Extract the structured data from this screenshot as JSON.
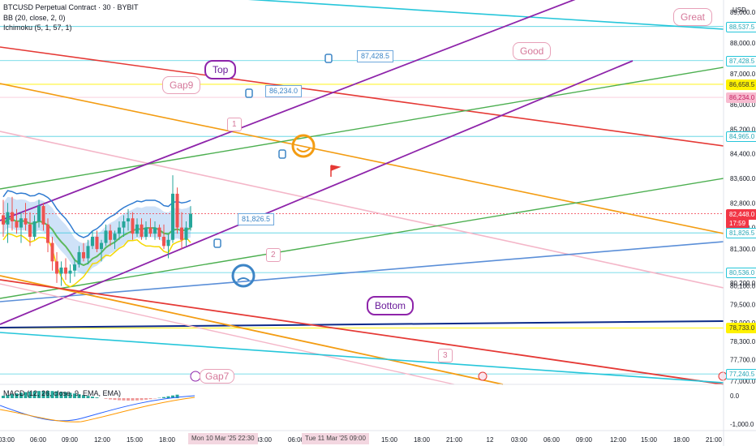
{
  "legend": {
    "symbol": "BTCUSD Perpetual Contract · 30 · BYBIT",
    "bb": "BB (20, close, 2, 0)",
    "ichimoku": "Ichimoku (5, 1, 57, 1)",
    "macd": "MACD (12, 26, close, 9, EMA, EMA)"
  },
  "price_axis": {
    "unit": "USD",
    "labels": [
      "89,000.0",
      "88,000.0",
      "87,000.0",
      "86,000.0",
      "85,200.0",
      "84,400.0",
      "83,600.0",
      "82,800.0",
      "82,000.0",
      "81,300.0",
      "80,200.0",
      "80,100.0",
      "79,500.0",
      "78,900.0",
      "78,300.0",
      "77,700.0",
      "77,000.0"
    ],
    "tags": [
      {
        "text": "88,537.5",
        "bg": "#ffffff",
        "fg": "#26a6b5",
        "border": "#26c6da"
      },
      {
        "text": "87,428.5",
        "bg": "#ffffff",
        "fg": "#26a6b5",
        "border": "#26c6da"
      },
      {
        "text": "86,658.5",
        "bg": "#fff200",
        "fg": "#333333",
        "border": "#fff200"
      },
      {
        "text": "86,234.0",
        "bg": "#f8bbd0",
        "fg": "#c2185b",
        "border": "#f8bbd0"
      },
      {
        "text": "84,965.0",
        "bg": "#ffffff",
        "fg": "#26a6b5",
        "border": "#26c6da"
      },
      {
        "text": "82,448.0",
        "bg": "#f23645",
        "fg": "#ffffff",
        "border": "#f23645"
      },
      {
        "text": "17:59",
        "bg": "#f23645",
        "fg": "#ffffff",
        "border": "#f23645"
      },
      {
        "text": "81,826.5",
        "bg": "#ffffff",
        "fg": "#26a6b5",
        "border": "#26c6da"
      },
      {
        "text": "80,536.0",
        "bg": "#ffffff",
        "fg": "#26a6b5",
        "border": "#26c6da"
      },
      {
        "text": "78,733.0",
        "bg": "#fff200",
        "fg": "#333333",
        "border": "#fff200"
      },
      {
        "text": "77,240.5",
        "bg": "#ffffff",
        "fg": "#26a6b5",
        "border": "#26c6da"
      }
    ],
    "macd_labels": [
      "0.0",
      "-1,000.0"
    ]
  },
  "time_axis": {
    "labels": [
      "03:00",
      "06:00",
      "09:00",
      "12:00",
      "15:00",
      "18:00",
      "03:00",
      "06:00",
      "12:00",
      "15:00",
      "18:00",
      "21:00",
      "12",
      "03:00",
      "06:00",
      "09:00",
      "12:00",
      "15:00",
      "18:00",
      "21:00"
    ],
    "highlights": [
      "Mon 10 Mar '25  22:30",
      "Tue 11 Mar '25  09:00"
    ]
  },
  "annotations": {
    "callouts": [
      "87,428.5",
      "86,234.0",
      "81,826.5"
    ],
    "bubbles": [
      "Great",
      "Good",
      "Gap9",
      "Top",
      "Bottom",
      "Gap7"
    ],
    "waves": [
      "1",
      "2",
      "3"
    ]
  },
  "colors": {
    "up": "#26a69a",
    "down": "#ef5350",
    "orange": "#f39c12",
    "purple": "#8e24aa",
    "green": "#4caf50",
    "red": "#e53935",
    "cyan": "#26c6da",
    "blue": "#5b8fd8",
    "navy": "#0d2b8a",
    "yellow": "#fff200",
    "pink": "#f4b6c8"
  },
  "chart_data": {
    "type": "candlestick",
    "title": "BTCUSD Perpetual Contract · 30 · BYBIT",
    "y_range": [
      76900,
      89400
    ],
    "candles": [
      {
        "o": 82400,
        "h": 82900,
        "l": 81700,
        "c": 82100
      },
      {
        "o": 82100,
        "h": 82800,
        "l": 81500,
        "c": 82500
      },
      {
        "o": 82500,
        "h": 83000,
        "l": 81900,
        "c": 82200
      },
      {
        "o": 82200,
        "h": 82600,
        "l": 81800,
        "c": 82000
      },
      {
        "o": 82000,
        "h": 82500,
        "l": 81500,
        "c": 82300
      },
      {
        "o": 82300,
        "h": 82800,
        "l": 81900,
        "c": 82100
      },
      {
        "o": 82100,
        "h": 82500,
        "l": 81400,
        "c": 81700
      },
      {
        "o": 81700,
        "h": 82400,
        "l": 81600,
        "c": 82200
      },
      {
        "o": 82200,
        "h": 82900,
        "l": 82000,
        "c": 82700
      },
      {
        "o": 82700,
        "h": 82800,
        "l": 81900,
        "c": 82100
      },
      {
        "o": 82100,
        "h": 82300,
        "l": 81200,
        "c": 81500
      },
      {
        "o": 81500,
        "h": 81700,
        "l": 80600,
        "c": 80900
      },
      {
        "o": 80900,
        "h": 81200,
        "l": 80200,
        "c": 80500
      },
      {
        "o": 80500,
        "h": 80900,
        "l": 80100,
        "c": 80700
      },
      {
        "o": 80700,
        "h": 81000,
        "l": 80300,
        "c": 80500
      },
      {
        "o": 80500,
        "h": 80800,
        "l": 80200,
        "c": 80600
      },
      {
        "o": 80600,
        "h": 81000,
        "l": 80400,
        "c": 80800
      },
      {
        "o": 80800,
        "h": 81400,
        "l": 80700,
        "c": 81200
      },
      {
        "o": 81200,
        "h": 81500,
        "l": 80900,
        "c": 81000
      },
      {
        "o": 81000,
        "h": 81600,
        "l": 80800,
        "c": 81400
      },
      {
        "o": 81400,
        "h": 81900,
        "l": 81300,
        "c": 81700
      },
      {
        "o": 81700,
        "h": 81900,
        "l": 81200,
        "c": 81300
      },
      {
        "o": 81300,
        "h": 81600,
        "l": 80900,
        "c": 81500
      },
      {
        "o": 81500,
        "h": 82100,
        "l": 81400,
        "c": 81900
      },
      {
        "o": 81900,
        "h": 82100,
        "l": 81400,
        "c": 81600
      },
      {
        "o": 81600,
        "h": 81900,
        "l": 81300,
        "c": 81800
      },
      {
        "o": 81800,
        "h": 82200,
        "l": 81600,
        "c": 82000
      },
      {
        "o": 82000,
        "h": 82400,
        "l": 81700,
        "c": 82200
      },
      {
        "o": 82200,
        "h": 82600,
        "l": 81900,
        "c": 82300
      },
      {
        "o": 82300,
        "h": 82500,
        "l": 81600,
        "c": 81800
      },
      {
        "o": 81800,
        "h": 82300,
        "l": 81700,
        "c": 82100
      },
      {
        "o": 82100,
        "h": 82300,
        "l": 81600,
        "c": 81700
      },
      {
        "o": 81700,
        "h": 82200,
        "l": 81600,
        "c": 82000
      },
      {
        "o": 82000,
        "h": 82300,
        "l": 81700,
        "c": 81800
      },
      {
        "o": 81800,
        "h": 82200,
        "l": 81600,
        "c": 82000
      },
      {
        "o": 82000,
        "h": 82100,
        "l": 81600,
        "c": 81700
      },
      {
        "o": 81700,
        "h": 82100,
        "l": 81300,
        "c": 81400
      },
      {
        "o": 81400,
        "h": 81800,
        "l": 81000,
        "c": 81600
      },
      {
        "o": 81600,
        "h": 83700,
        "l": 81500,
        "c": 83100
      },
      {
        "o": 83100,
        "h": 83300,
        "l": 81800,
        "c": 82000
      },
      {
        "o": 82000,
        "h": 82500,
        "l": 81300,
        "c": 81600
      },
      {
        "o": 81600,
        "h": 82200,
        "l": 81400,
        "c": 82000
      },
      {
        "o": 82000,
        "h": 82700,
        "l": 81900,
        "c": 82448
      }
    ]
  }
}
